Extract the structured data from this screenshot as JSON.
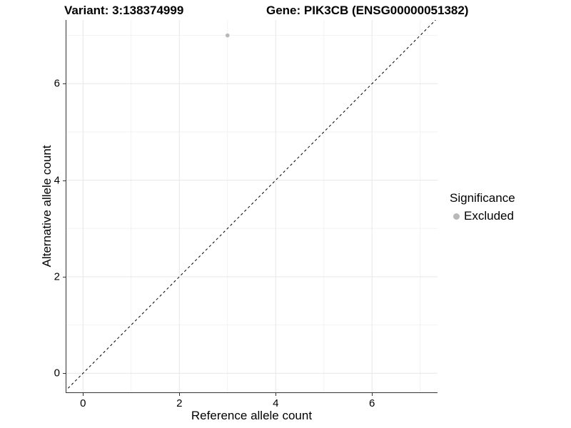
{
  "chart_data": {
    "type": "scatter",
    "titles": {
      "left": "Variant: 3:138374999",
      "right": "Gene: PIK3CB (ENSG00000051382)"
    },
    "xlabel": "Reference allele count",
    "ylabel": "Alternative allele count",
    "xlim": [
      -0.36,
      7.36
    ],
    "ylim": [
      -0.41,
      7.32
    ],
    "x_major_ticks": [
      0,
      2,
      4,
      6
    ],
    "y_major_ticks": [
      0,
      2,
      4,
      6
    ],
    "x_minor_gridlines": [
      1,
      3,
      5,
      7
    ],
    "y_minor_gridlines": [
      1,
      3,
      5,
      7
    ],
    "grid": true,
    "reference_line": {
      "type": "identity",
      "dashed": true,
      "color": "#000000"
    },
    "series": [
      {
        "name": "Excluded",
        "color": "#b8b8b8",
        "points": [
          {
            "x": 3,
            "y": 7
          }
        ]
      }
    ],
    "legend": {
      "title": "Significance",
      "position": "right",
      "items": [
        {
          "label": "Excluded",
          "color": "#b8b8b8"
        }
      ]
    }
  },
  "colors": {
    "background": "#ffffff",
    "grid_major": "#e7e7e7",
    "grid_minor": "#f2f2f2",
    "axis_line": "#333333",
    "tick": "#333333",
    "text": "#000000"
  }
}
